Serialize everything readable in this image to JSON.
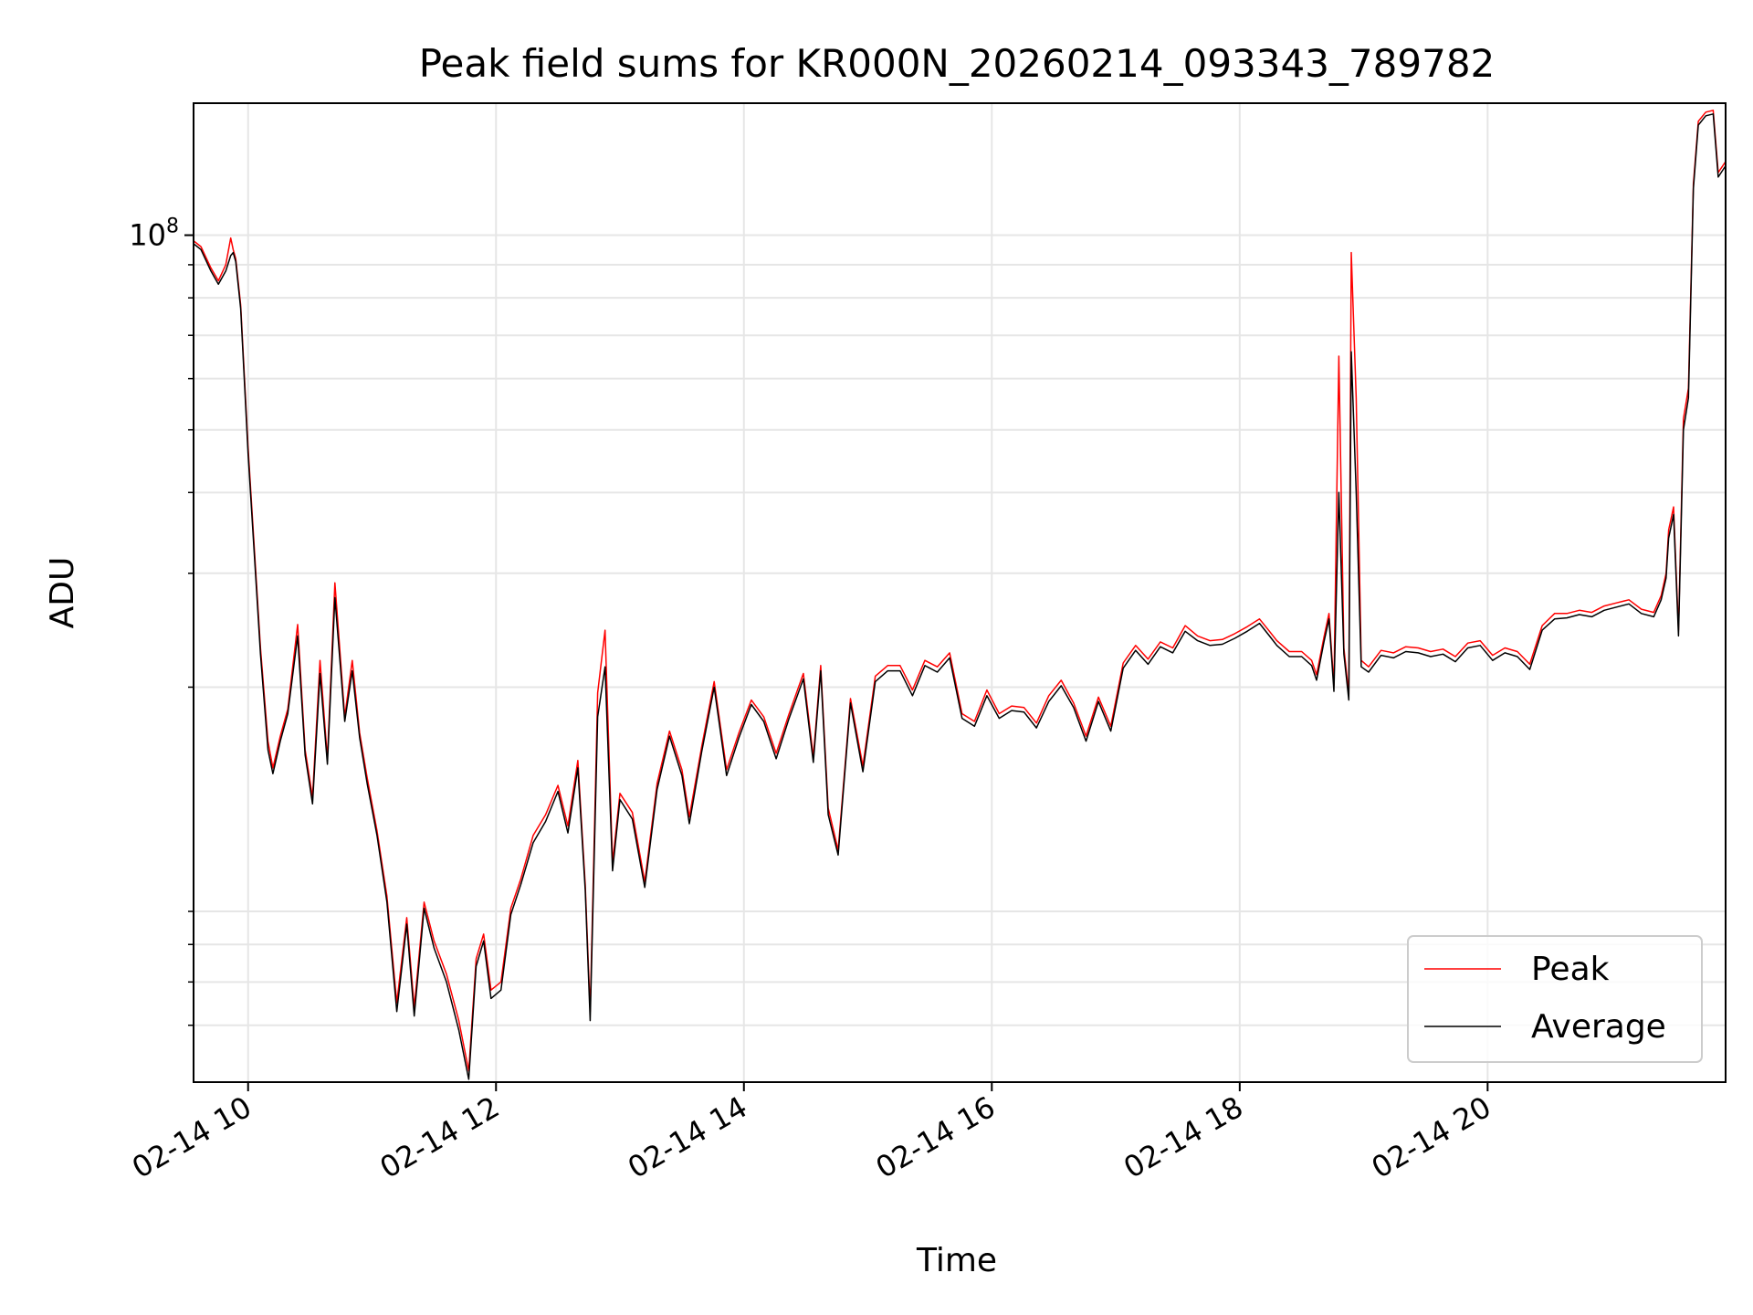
{
  "chart_data": {
    "type": "line",
    "title": "Peak field sums for KR000N_20260214_093343_789782",
    "xlabel": "Time",
    "ylabel": "ADU",
    "yscale": "log",
    "xlim_hours": [
      9.56,
      21.92
    ],
    "ylim": [
      4900000,
      160000000
    ],
    "grid": true,
    "legend_location": "lower right",
    "x_ticks": [
      {
        "value": 10,
        "label": "02-14 10"
      },
      {
        "value": 12,
        "label": "02-14 12"
      },
      {
        "value": 14,
        "label": "02-14 14"
      },
      {
        "value": 16,
        "label": "02-14 16"
      },
      {
        "value": 18,
        "label": "02-14 18"
      },
      {
        "value": 20,
        "label": "02-14 20"
      }
    ],
    "y_major_ticks": [
      {
        "value": 100000000,
        "base": "10",
        "exponent": "8"
      }
    ],
    "y_minor_ticks": [
      6000000,
      7000000,
      8000000,
      9000000,
      20000000,
      30000000,
      40000000,
      50000000,
      60000000,
      70000000,
      80000000,
      90000000
    ],
    "series": [
      {
        "name": "Peak",
        "color": "#ff0000",
        "x": [
          9.56,
          9.62,
          9.7,
          9.76,
          9.82,
          9.86,
          9.88,
          9.9,
          9.94,
          10.0,
          10.1,
          10.16,
          10.2,
          10.26,
          10.32,
          10.4,
          10.46,
          10.52,
          10.58,
          10.64,
          10.7,
          10.78,
          10.84,
          10.9,
          10.96,
          11.04,
          11.12,
          11.2,
          11.28,
          11.34,
          11.42,
          11.5,
          11.6,
          11.7,
          11.78,
          11.84,
          11.9,
          11.96,
          12.04,
          12.12,
          12.2,
          12.3,
          12.4,
          12.5,
          12.58,
          12.66,
          12.72,
          12.76,
          12.82,
          12.88,
          12.94,
          13.0,
          13.1,
          13.2,
          13.3,
          13.4,
          13.5,
          13.56,
          13.66,
          13.76,
          13.86,
          13.96,
          14.06,
          14.16,
          14.26,
          14.36,
          14.48,
          14.56,
          14.62,
          14.68,
          14.76,
          14.86,
          14.96,
          15.06,
          15.16,
          15.26,
          15.36,
          15.46,
          15.56,
          15.66,
          15.76,
          15.86,
          15.96,
          16.06,
          16.16,
          16.26,
          16.36,
          16.46,
          16.56,
          16.66,
          16.76,
          16.86,
          16.96,
          17.06,
          17.16,
          17.26,
          17.36,
          17.46,
          17.56,
          17.66,
          17.76,
          17.86,
          17.96,
          18.06,
          18.16,
          18.24,
          18.3,
          18.4,
          18.5,
          18.58,
          18.62,
          18.68,
          18.72,
          18.76,
          18.8,
          18.84,
          18.88,
          18.9,
          18.94,
          18.98,
          19.04,
          19.14,
          19.24,
          19.34,
          19.44,
          19.54,
          19.64,
          19.74,
          19.84,
          19.94,
          20.04,
          20.14,
          20.24,
          20.34,
          20.44,
          20.54,
          20.64,
          20.74,
          20.84,
          20.94,
          21.04,
          21.14,
          21.24,
          21.34,
          21.4,
          21.44,
          21.46,
          21.5,
          21.54,
          21.58,
          21.62,
          21.66,
          21.7,
          21.76,
          21.82,
          21.86,
          21.92
        ],
        "values": [
          98000000,
          96000000,
          89000000,
          85000000,
          90000000,
          99000000,
          95000000,
          92000000,
          78000000,
          47000000,
          23000000,
          16500000,
          15000000,
          16800000,
          18500000,
          25000000,
          16000000,
          13500000,
          22000000,
          15500000,
          29000000,
          18000000,
          22000000,
          17000000,
          14500000,
          12000000,
          9500000,
          6500000,
          8800000,
          6400000,
          9300000,
          8100000,
          7200000,
          6100000,
          5100000,
          7600000,
          8300000,
          6800000,
          7000000,
          9100000,
          10100000,
          11800000,
          12700000,
          14100000,
          12200000,
          15400000,
          9900000,
          6300000,
          19600000,
          24500000,
          10700000,
          13700000,
          12800000,
          10000000,
          14200000,
          17100000,
          14900000,
          12600000,
          16200000,
          20400000,
          14900000,
          17000000,
          19100000,
          18000000,
          15800000,
          18100000,
          21000000,
          15600000,
          21600000,
          13000000,
          11200000,
          19200000,
          15100000,
          20800000,
          21600000,
          21600000,
          19800000,
          22000000,
          21500000,
          22600000,
          18200000,
          17700000,
          19800000,
          18200000,
          18700000,
          18600000,
          17600000,
          19400000,
          20500000,
          18900000,
          16800000,
          19300000,
          17400000,
          21800000,
          23200000,
          22100000,
          23500000,
          23000000,
          24900000,
          24000000,
          23600000,
          23700000,
          24200000,
          24800000,
          25500000,
          24400000,
          23600000,
          22700000,
          22700000,
          22000000,
          20900000,
          23900000,
          26000000,
          20100000,
          65000000,
          23000000,
          19500000,
          94000000,
          56000000,
          22000000,
          21500000,
          22800000,
          22600000,
          23100000,
          23000000,
          22700000,
          22900000,
          22300000,
          23400000,
          23600000,
          22400000,
          23000000,
          22700000,
          21700000,
          24900000,
          26000000,
          26000000,
          26300000,
          26100000,
          26700000,
          27000000,
          27300000,
          26400000,
          26100000,
          27700000,
          30000000,
          35000000,
          38000000,
          24500000,
          52000000,
          58000000,
          120000000,
          150000000,
          155000000,
          156000000,
          125000000,
          130000000
        ]
      },
      {
        "name": "Average",
        "color": "#000000",
        "x": [
          9.56,
          9.62,
          9.7,
          9.76,
          9.82,
          9.86,
          9.88,
          9.9,
          9.94,
          10.0,
          10.1,
          10.16,
          10.2,
          10.26,
          10.32,
          10.4,
          10.46,
          10.52,
          10.58,
          10.64,
          10.7,
          10.78,
          10.84,
          10.9,
          10.96,
          11.04,
          11.12,
          11.2,
          11.28,
          11.34,
          11.42,
          11.5,
          11.6,
          11.7,
          11.78,
          11.84,
          11.9,
          11.96,
          12.04,
          12.12,
          12.2,
          12.3,
          12.4,
          12.5,
          12.58,
          12.66,
          12.72,
          12.76,
          12.82,
          12.88,
          12.94,
          13.0,
          13.1,
          13.2,
          13.3,
          13.4,
          13.5,
          13.56,
          13.66,
          13.76,
          13.86,
          13.96,
          14.06,
          14.16,
          14.26,
          14.36,
          14.48,
          14.56,
          14.62,
          14.68,
          14.76,
          14.86,
          14.96,
          15.06,
          15.16,
          15.26,
          15.36,
          15.46,
          15.56,
          15.66,
          15.76,
          15.86,
          15.96,
          16.06,
          16.16,
          16.26,
          16.36,
          16.46,
          16.56,
          16.66,
          16.76,
          16.86,
          16.96,
          17.06,
          17.16,
          17.26,
          17.36,
          17.46,
          17.56,
          17.66,
          17.76,
          17.86,
          17.96,
          18.06,
          18.16,
          18.24,
          18.3,
          18.4,
          18.5,
          18.58,
          18.62,
          18.68,
          18.72,
          18.76,
          18.8,
          18.84,
          18.88,
          18.9,
          18.94,
          18.98,
          19.04,
          19.14,
          19.24,
          19.34,
          19.44,
          19.54,
          19.64,
          19.74,
          19.84,
          19.94,
          20.04,
          20.14,
          20.24,
          20.34,
          20.44,
          20.54,
          20.64,
          20.74,
          20.84,
          20.94,
          21.04,
          21.14,
          21.24,
          21.34,
          21.4,
          21.44,
          21.46,
          21.5,
          21.54,
          21.58,
          21.62,
          21.66,
          21.7,
          21.76,
          21.82,
          21.86,
          21.92
        ],
        "values": [
          97000000,
          95000000,
          88000000,
          84000000,
          88000000,
          93000000,
          94000000,
          91000000,
          77000000,
          46000000,
          22500000,
          16000000,
          14700000,
          16500000,
          18200000,
          24000000,
          15700000,
          13200000,
          21000000,
          15200000,
          27500000,
          17700000,
          21200000,
          16700000,
          14200000,
          11800000,
          9300000,
          6300000,
          8600000,
          6200000,
          9100000,
          7900000,
          7000000,
          5900000,
          4950000,
          7400000,
          8100000,
          6600000,
          6800000,
          8900000,
          9900000,
          11500000,
          12400000,
          13800000,
          11900000,
          15000000,
          9700000,
          6100000,
          18000000,
          21500000,
          10400000,
          13400000,
          12500000,
          9800000,
          13900000,
          16800000,
          14600000,
          12300000,
          15900000,
          20000000,
          14600000,
          16700000,
          18800000,
          17700000,
          15500000,
          17800000,
          20600000,
          15300000,
          21200000,
          12700000,
          11000000,
          18900000,
          14800000,
          20400000,
          21200000,
          21200000,
          19400000,
          21600000,
          21100000,
          22200000,
          17900000,
          17400000,
          19400000,
          17900000,
          18400000,
          18300000,
          17300000,
          19000000,
          20100000,
          18600000,
          16500000,
          19000000,
          17100000,
          21400000,
          22800000,
          21700000,
          23100000,
          22600000,
          24400000,
          23600000,
          23200000,
          23300000,
          23800000,
          24400000,
          25100000,
          24000000,
          23200000,
          22300000,
          22300000,
          21600000,
          20500000,
          23500000,
          25500000,
          19700000,
          40000000,
          22500000,
          19100000,
          66000000,
          40000000,
          21500000,
          21100000,
          22400000,
          22200000,
          22700000,
          22600000,
          22300000,
          22500000,
          21900000,
          23000000,
          23200000,
          22000000,
          22600000,
          22300000,
          21300000,
          24500000,
          25500000,
          25600000,
          25900000,
          25700000,
          26300000,
          26600000,
          26900000,
          26000000,
          25700000,
          27300000,
          29500000,
          34000000,
          37000000,
          24000000,
          50000000,
          56000000,
          118000000,
          148000000,
          153000000,
          154000000,
          123000000,
          128000000
        ]
      }
    ]
  }
}
